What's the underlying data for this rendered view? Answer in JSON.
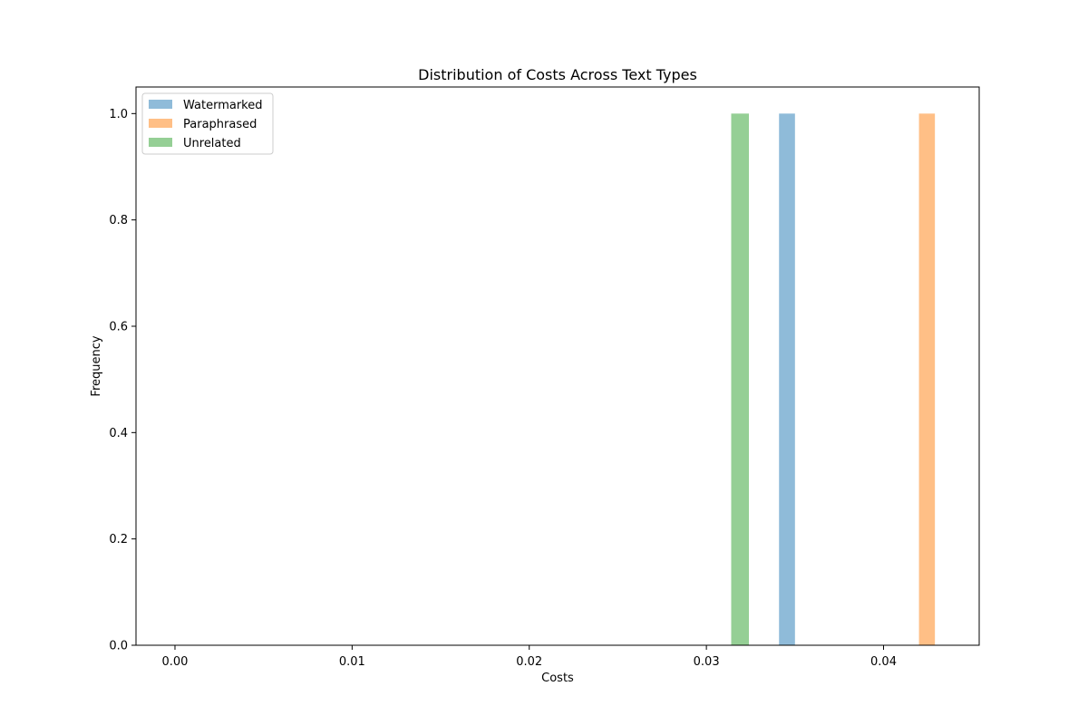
{
  "chart_data": {
    "type": "bar",
    "title": "Distribution of Costs Across Text Types",
    "xlabel": "Costs",
    "ylabel": "Frequency",
    "xlim": [
      -0.0022,
      0.0454
    ],
    "ylim": [
      0,
      1.05
    ],
    "xticks": [
      "0.00",
      "0.01",
      "0.02",
      "0.03",
      "0.04"
    ],
    "yticks": [
      "0.0",
      "0.2",
      "0.4",
      "0.6",
      "0.8",
      "1.0"
    ],
    "grid": false,
    "legend_position": "top-left",
    "series": [
      {
        "name": "Watermarked",
        "color": "#1f77b4",
        "bins": [
          {
            "x_start": 0.0341,
            "x_end": 0.035,
            "count": 1
          }
        ]
      },
      {
        "name": "Paraphrased",
        "color": "#ff7f0e",
        "bins": [
          {
            "x_start": 0.042,
            "x_end": 0.0429,
            "count": 1
          }
        ]
      },
      {
        "name": "Unrelated",
        "color": "#2ca02c",
        "bins": [
          {
            "x_start": 0.0314,
            "x_end": 0.0324,
            "count": 1
          }
        ]
      }
    ]
  }
}
